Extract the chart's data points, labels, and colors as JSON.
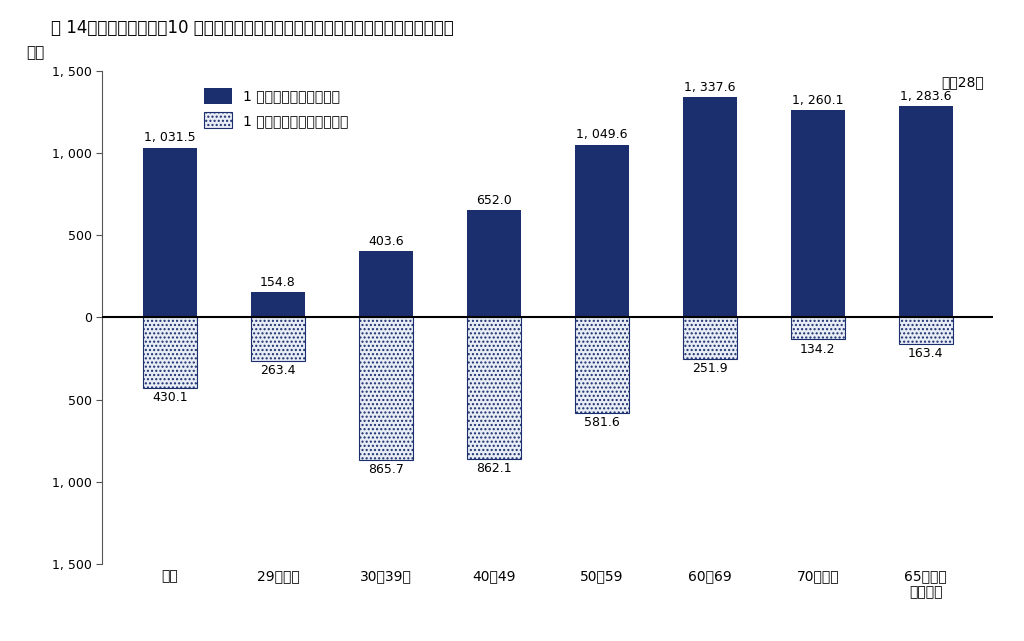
{
  "title": "図 14　世帯主の年齢（10 歳階級）別にみた１世帯当たり平均賯蓄額－平均借入金額",
  "year_label": "平成28年",
  "ylabel": "万円",
  "categories": [
    "総数",
    "29歳以下",
    "30～39歳",
    "40～49",
    "50～59",
    "60～69",
    "70歳以上",
    "65歳以上\n（再掲）"
  ],
  "savings": [
    1031.5,
    154.8,
    403.6,
    652.0,
    1049.6,
    1337.6,
    1260.1,
    1283.6
  ],
  "debt": [
    430.1,
    263.4,
    865.7,
    862.1,
    581.6,
    251.9,
    134.2,
    163.4
  ],
  "savings_color": "#1b2f6e",
  "debt_facecolor": "#e8ecf5",
  "debt_edgecolor": "#1b2f6e",
  "debt_hatch": "....",
  "bar_width": 0.5,
  "ylim": [
    -1500,
    1500
  ],
  "yticks": [
    -1500,
    -1000,
    -500,
    0,
    500,
    1000,
    1500
  ],
  "ytick_labels": [
    "1, 500",
    "1, 000",
    "500",
    "0",
    "500",
    "1, 000",
    "1, 500"
  ],
  "legend_savings": "1 世帯当たり平均賯蓄額",
  "legend_debt": "1 世帯当たり平均借入金額",
  "background_color": "#ffffff",
  "spine_color": "#555555"
}
